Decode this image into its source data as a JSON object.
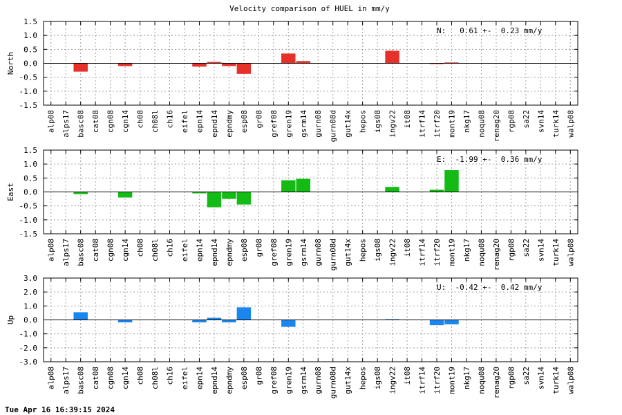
{
  "footer": {
    "timestamp": "Tue Apr 16 16:39:15 2024"
  },
  "chart_data": {
    "type": "bar",
    "title": "Velocity comparison of HUEL in mm/y",
    "categories": [
      "alp08",
      "alps17",
      "basc08",
      "cat08",
      "cgn08",
      "cgn14",
      "ch08",
      "ch08l",
      "ch16",
      "eifel",
      "epn14",
      "epnd14",
      "epndmy",
      "esp08",
      "gr08",
      "gref08",
      "gren19",
      "gsrm14",
      "gurn08",
      "gurn08d",
      "gut14x",
      "hepos",
      "igs08",
      "ingv22",
      "it08",
      "itrf14",
      "itrf20",
      "mont19",
      "nkg17",
      "noqu08",
      "renag20",
      "rgp08",
      "sa22",
      "svn14",
      "turk14",
      "walp08"
    ],
    "grid": true,
    "panels": [
      {
        "name": "North",
        "ylabel": "North",
        "color": "#e8302a",
        "ylim": [
          -1.5,
          1.5
        ],
        "yticks": [
          -1.5,
          -1.0,
          -0.5,
          0.0,
          0.5,
          1.0,
          1.5
        ],
        "ytick_labels": [
          "-1.5",
          "-1.0",
          "-0.5",
          "0.0",
          "0.5",
          "1.0",
          "1.5"
        ],
        "annotation": "N:   0.61 +-  0.23 mm/y",
        "values": [
          null,
          null,
          -0.3,
          null,
          null,
          -0.1,
          null,
          null,
          null,
          null,
          -0.12,
          0.05,
          -0.1,
          -0.38,
          null,
          null,
          0.35,
          0.08,
          null,
          null,
          null,
          null,
          null,
          0.45,
          null,
          null,
          -0.03,
          0.03,
          null,
          null,
          null,
          null,
          null,
          null,
          null,
          null
        ]
      },
      {
        "name": "East",
        "ylabel": "East",
        "color": "#14bb14",
        "ylim": [
          -1.5,
          1.5
        ],
        "yticks": [
          -1.5,
          -1.0,
          -0.5,
          0.0,
          0.5,
          1.0,
          1.5
        ],
        "ytick_labels": [
          "-1.5",
          "-1.0",
          "-0.5",
          "0.0",
          "0.5",
          "1.0",
          "1.5"
        ],
        "annotation": "E:  -1.99 +-  0.36 mm/y",
        "values": [
          null,
          null,
          -0.08,
          null,
          null,
          -0.2,
          null,
          null,
          null,
          null,
          -0.05,
          -0.55,
          -0.25,
          -0.45,
          null,
          null,
          0.42,
          0.47,
          null,
          null,
          null,
          null,
          null,
          0.18,
          null,
          null,
          0.08,
          0.78,
          null,
          null,
          null,
          null,
          null,
          null,
          null,
          null
        ]
      },
      {
        "name": "Up",
        "ylabel": "Up",
        "color": "#1c86ee",
        "ylim": [
          -3.0,
          3.0
        ],
        "yticks": [
          -3.0,
          -2.0,
          -1.0,
          0.0,
          1.0,
          2.0,
          3.0
        ],
        "ytick_labels": [
          "-3.0",
          "-2.0",
          "-1.0",
          "0.0",
          "1.0",
          "2.0",
          "3.0"
        ],
        "annotation": "U:  -0.42 +-  0.42 mm/y",
        "values": [
          null,
          null,
          0.55,
          null,
          null,
          -0.18,
          null,
          null,
          null,
          null,
          -0.18,
          0.15,
          -0.18,
          0.9,
          null,
          null,
          -0.5,
          null,
          null,
          null,
          null,
          null,
          null,
          0.05,
          null,
          null,
          -0.38,
          -0.32,
          null,
          null,
          null,
          null,
          null,
          null,
          null,
          null
        ]
      }
    ]
  }
}
